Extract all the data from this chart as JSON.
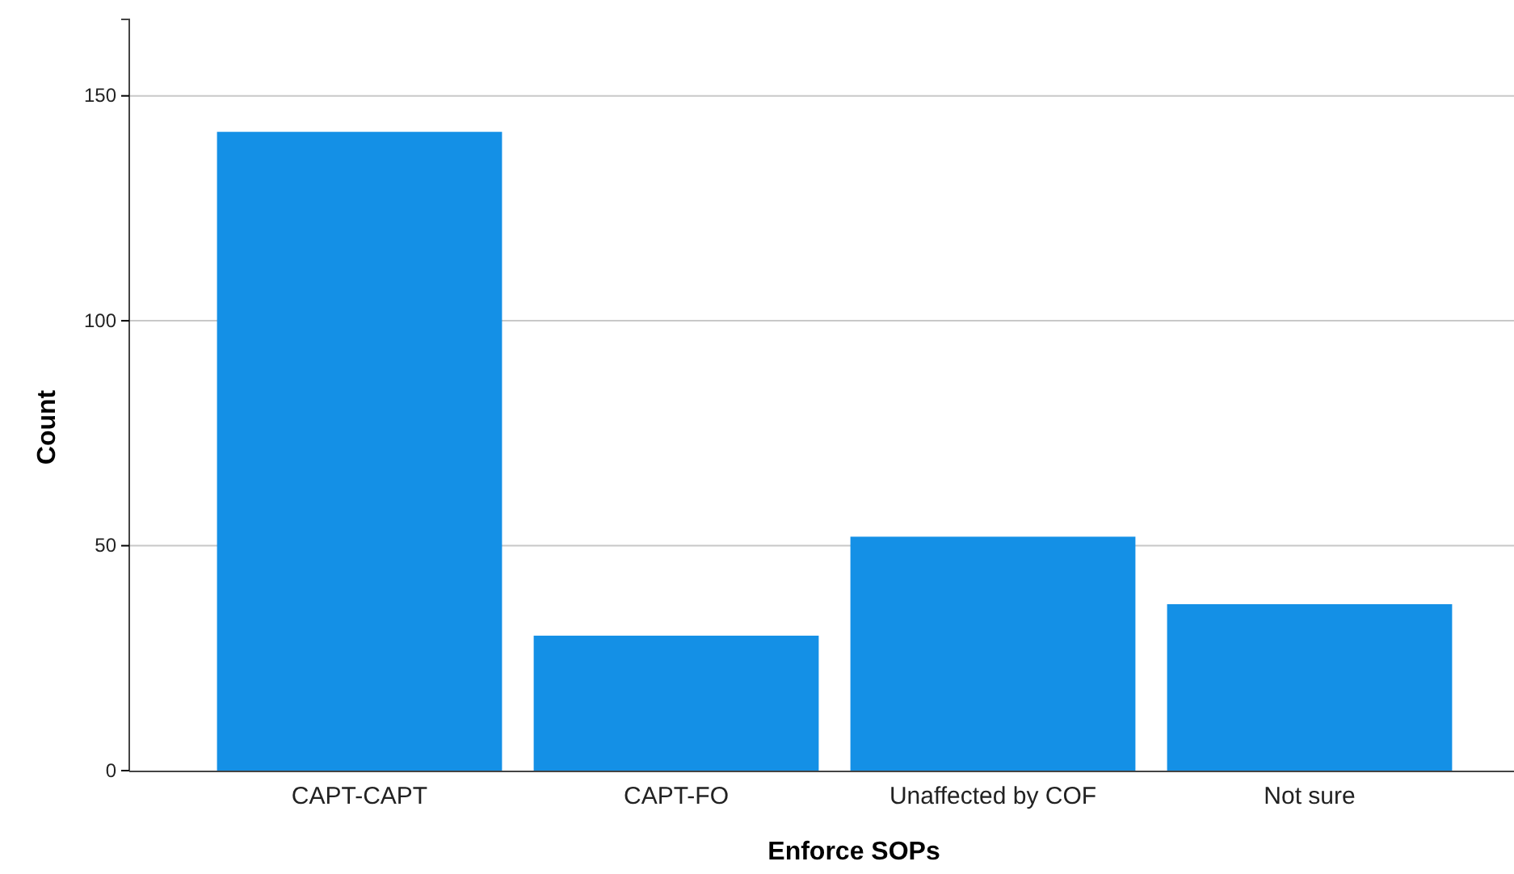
{
  "chart_data": {
    "type": "bar",
    "xlabel": "Enforce SOPs",
    "ylabel": "Count",
    "categories": [
      "CAPT-CAPT",
      "CAPT-FO",
      "Unaffected by COF",
      "Not sure"
    ],
    "values": [
      142,
      30,
      52,
      37
    ],
    "color": "#1490e6",
    "ylim": [
      0,
      167
    ],
    "yticks": [
      0,
      50,
      100,
      150
    ],
    "grid": "y",
    "legend": false
  }
}
